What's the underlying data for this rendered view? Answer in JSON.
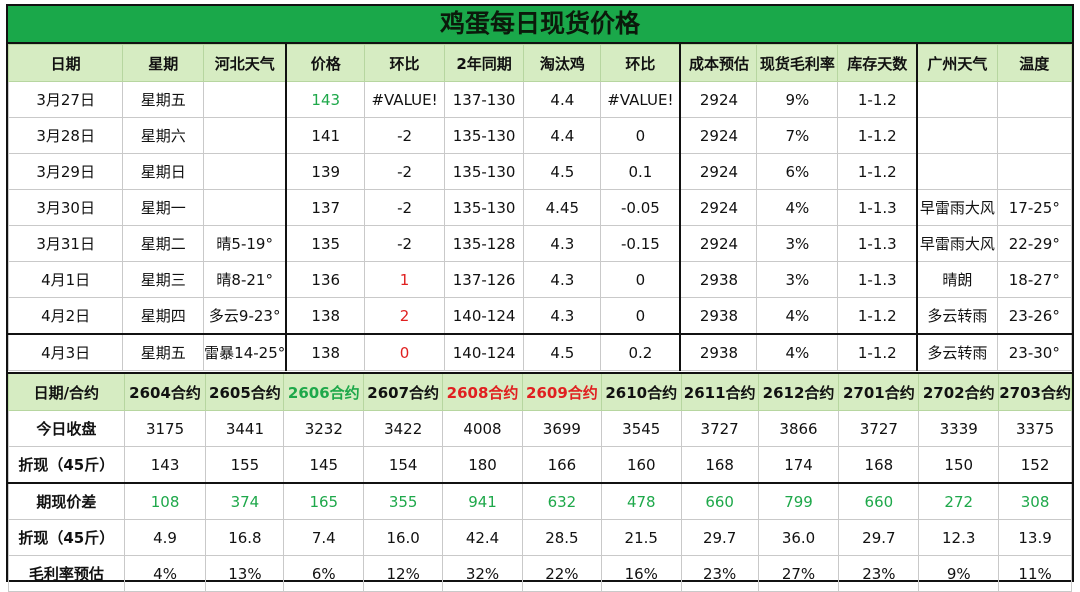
{
  "title": "鸡蛋每日现货价格",
  "colors": {
    "header_bg": "#d6ecc2",
    "title_bg": "#1aa84a",
    "up": "#e02020",
    "highlight": "#1ea84a"
  },
  "daily_table": {
    "headers": [
      "日期",
      "星期",
      "河北天气",
      "价格",
      "环比",
      "2年同期",
      "淘汰鸡",
      "环比",
      "成本预估",
      "现货毛利率",
      "库存天数",
      "广州天气",
      "温度"
    ],
    "rows": [
      [
        "3月27日",
        "星期五",
        "",
        "143",
        "#VALUE!",
        "137-130",
        "4.4",
        "#VALUE!",
        "2924",
        "9%",
        "1-1.2",
        "",
        ""
      ],
      [
        "3月28日",
        "星期六",
        "",
        "141",
        "-2",
        "135-130",
        "4.4",
        "0",
        "2924",
        "7%",
        "1-1.2",
        "",
        ""
      ],
      [
        "3月29日",
        "星期日",
        "",
        "139",
        "-2",
        "135-130",
        "4.5",
        "0.1",
        "2924",
        "6%",
        "1-1.2",
        "",
        ""
      ],
      [
        "3月30日",
        "星期一",
        "",
        "137",
        "-2",
        "135-130",
        "4.45",
        "-0.05",
        "2924",
        "4%",
        "1-1.3",
        "早雷雨大风",
        "17-25°"
      ],
      [
        "3月31日",
        "星期二",
        "晴5-19°",
        "135",
        "-2",
        "135-128",
        "4.3",
        "-0.15",
        "2924",
        "3%",
        "1-1.3",
        "早雷雨大风",
        "22-29°"
      ],
      [
        "4月1日",
        "星期三",
        "晴8-21°",
        "136",
        "1",
        "137-126",
        "4.3",
        "0",
        "2938",
        "3%",
        "1-1.3",
        "晴朗",
        "18-27°"
      ],
      [
        "4月2日",
        "星期四",
        "多云9-23°",
        "138",
        "2",
        "140-124",
        "4.3",
        "0",
        "2938",
        "4%",
        "1-1.2",
        "多云转雨",
        "23-26°"
      ],
      [
        "4月3日",
        "星期五",
        "雷暴14-25°",
        "138",
        "0",
        "140-124",
        "4.5",
        "0.2",
        "2938",
        "4%",
        "1-1.2",
        "多云转雨",
        "23-30°"
      ]
    ]
  },
  "futures_table": {
    "header_label": "日期/合约",
    "contracts": [
      "2604合约",
      "2605合约",
      "2606合约",
      "2607合约",
      "2608合约",
      "2609合约",
      "2610合约",
      "2611合约",
      "2612合约",
      "2701合约",
      "2702合约",
      "2703合约"
    ],
    "rows": [
      {
        "label": "今日收盘",
        "values": [
          "3175",
          "3441",
          "3232",
          "3422",
          "4008",
          "3699",
          "3545",
          "3727",
          "3866",
          "3727",
          "3339",
          "3375"
        ]
      },
      {
        "label": "折现（45斤）",
        "values": [
          "143",
          "155",
          "145",
          "154",
          "180",
          "166",
          "160",
          "168",
          "174",
          "168",
          "150",
          "152"
        ]
      },
      {
        "label": "期现价差",
        "values": [
          "108",
          "374",
          "165",
          "355",
          "941",
          "632",
          "478",
          "660",
          "799",
          "660",
          "272",
          "308"
        ]
      },
      {
        "label": "折现（45斤）",
        "values": [
          "4.9",
          "16.8",
          "7.4",
          "16.0",
          "42.4",
          "28.5",
          "21.5",
          "29.7",
          "36.0",
          "29.7",
          "12.3",
          "13.9"
        ]
      },
      {
        "label": "毛利率预估",
        "values": [
          "4%",
          "13%",
          "6%",
          "12%",
          "32%",
          "22%",
          "16%",
          "23%",
          "27%",
          "23%",
          "9%",
          "11%"
        ]
      }
    ]
  }
}
